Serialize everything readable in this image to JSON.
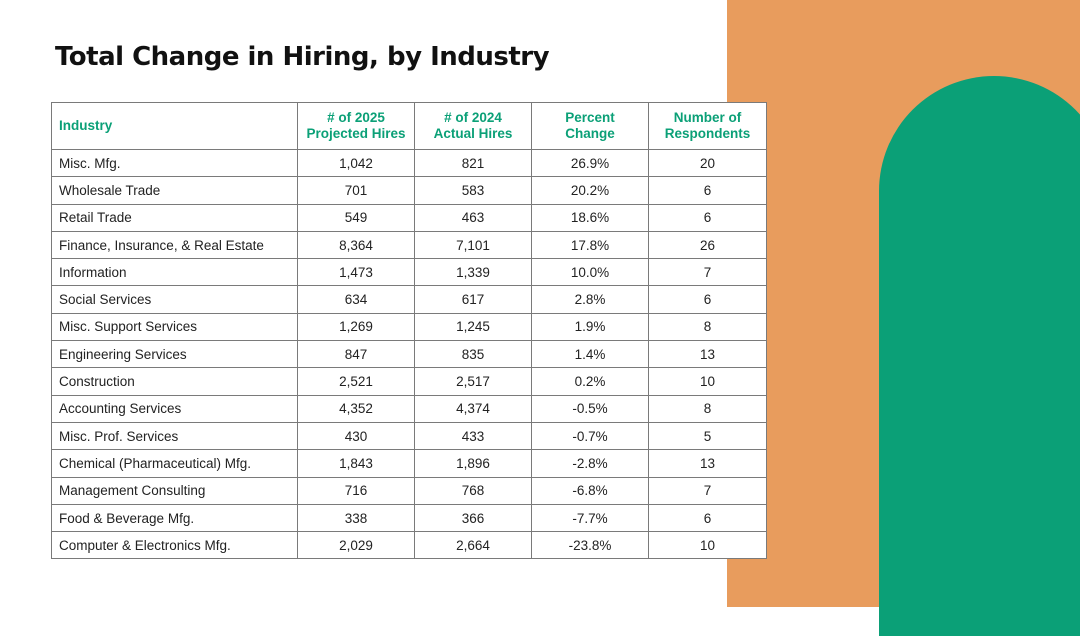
{
  "colors": {
    "accent_orange": "#E89C5D",
    "accent_green": "#0BA077",
    "header_text": "#0BA077"
  },
  "title": "Total Change in Hiring, by Industry",
  "table": {
    "headers": {
      "industry": "Industry",
      "projected_line1": "# of 2025",
      "projected_line2": "Projected Hires",
      "actual_line1": "# of 2024",
      "actual_line2": "Actual Hires",
      "percent_line1": "Percent",
      "percent_line2": "Change",
      "respondents_line1": "Number of",
      "respondents_line2": "Respondents"
    },
    "rows": [
      {
        "industry": "Misc. Mfg.",
        "projected": "1,042",
        "actual": "821",
        "percent": "26.9%",
        "respondents": "20"
      },
      {
        "industry": "Wholesale Trade",
        "projected": "701",
        "actual": "583",
        "percent": "20.2%",
        "respondents": "6"
      },
      {
        "industry": "Retail Trade",
        "projected": "549",
        "actual": "463",
        "percent": "18.6%",
        "respondents": "6"
      },
      {
        "industry": "Finance, Insurance, & Real Estate",
        "projected": "8,364",
        "actual": "7,101",
        "percent": "17.8%",
        "respondents": "26"
      },
      {
        "industry": "Information",
        "projected": "1,473",
        "actual": "1,339",
        "percent": "10.0%",
        "respondents": "7"
      },
      {
        "industry": "Social Services",
        "projected": "634",
        "actual": "617",
        "percent": "2.8%",
        "respondents": "6"
      },
      {
        "industry": "Misc. Support Services",
        "projected": "1,269",
        "actual": "1,245",
        "percent": "1.9%",
        "respondents": "8"
      },
      {
        "industry": "Engineering Services",
        "projected": "847",
        "actual": "835",
        "percent": "1.4%",
        "respondents": "13"
      },
      {
        "industry": "Construction",
        "projected": "2,521",
        "actual": "2,517",
        "percent": "0.2%",
        "respondents": "10"
      },
      {
        "industry": "Accounting Services",
        "projected": "4,352",
        "actual": "4,374",
        "percent": "-0.5%",
        "respondents": "8"
      },
      {
        "industry": "Misc. Prof. Services",
        "projected": "430",
        "actual": "433",
        "percent": "-0.7%",
        "respondents": "5"
      },
      {
        "industry": "Chemical (Pharmaceutical) Mfg.",
        "projected": "1,843",
        "actual": "1,896",
        "percent": "-2.8%",
        "respondents": "13"
      },
      {
        "industry": "Management Consulting",
        "projected": "716",
        "actual": "768",
        "percent": "-6.8%",
        "respondents": "7"
      },
      {
        "industry": "Food & Beverage Mfg.",
        "projected": "338",
        "actual": "366",
        "percent": "-7.7%",
        "respondents": "6"
      },
      {
        "industry": "Computer & Electronics Mfg.",
        "projected": "2,029",
        "actual": "2,664",
        "percent": "-23.8%",
        "respondents": "10"
      }
    ]
  }
}
